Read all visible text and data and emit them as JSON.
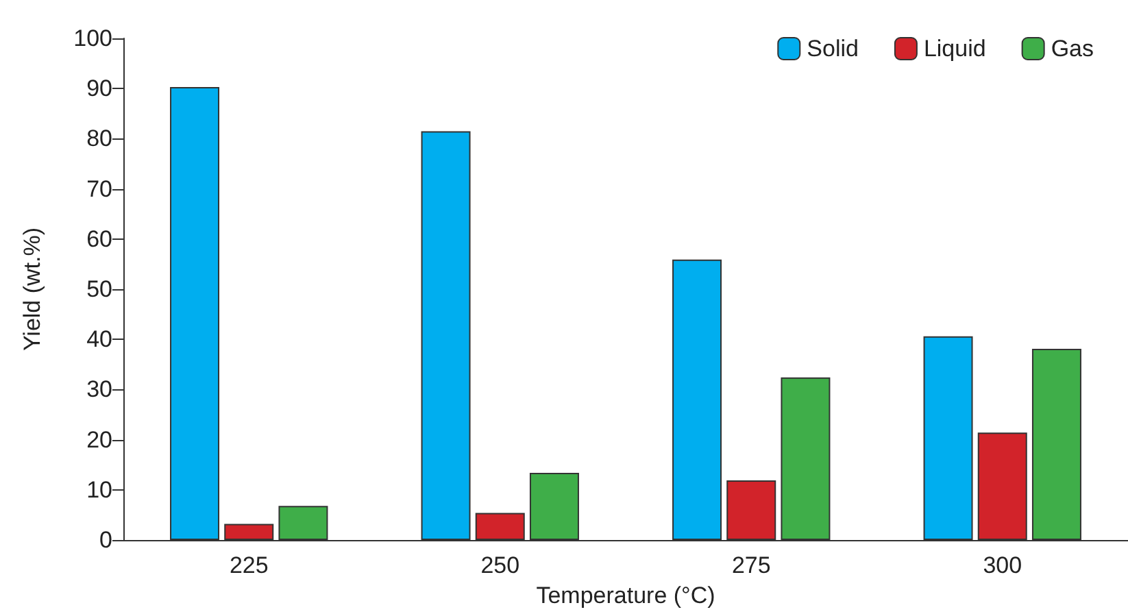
{
  "chart_data": {
    "type": "bar",
    "xlabel": "Temperature (°C)",
    "ylabel": "Yield (wt.%)",
    "categories": [
      "225",
      "250",
      "275",
      "300"
    ],
    "series": [
      {
        "name": "Solid",
        "color": "#00aeef",
        "values": [
          90.3,
          81.5,
          55.9,
          40.6
        ]
      },
      {
        "name": "Liquid",
        "color": "#d2232a",
        "values": [
          3.2,
          5.4,
          11.9,
          21.4
        ]
      },
      {
        "name": "Gas",
        "color": "#3fae49",
        "values": [
          6.8,
          13.4,
          32.4,
          38.1
        ]
      }
    ],
    "ylim": [
      0,
      100
    ],
    "yticks": [
      0,
      10,
      20,
      30,
      40,
      50,
      60,
      70,
      80,
      90,
      100
    ],
    "grid": false,
    "legend": "top right"
  }
}
